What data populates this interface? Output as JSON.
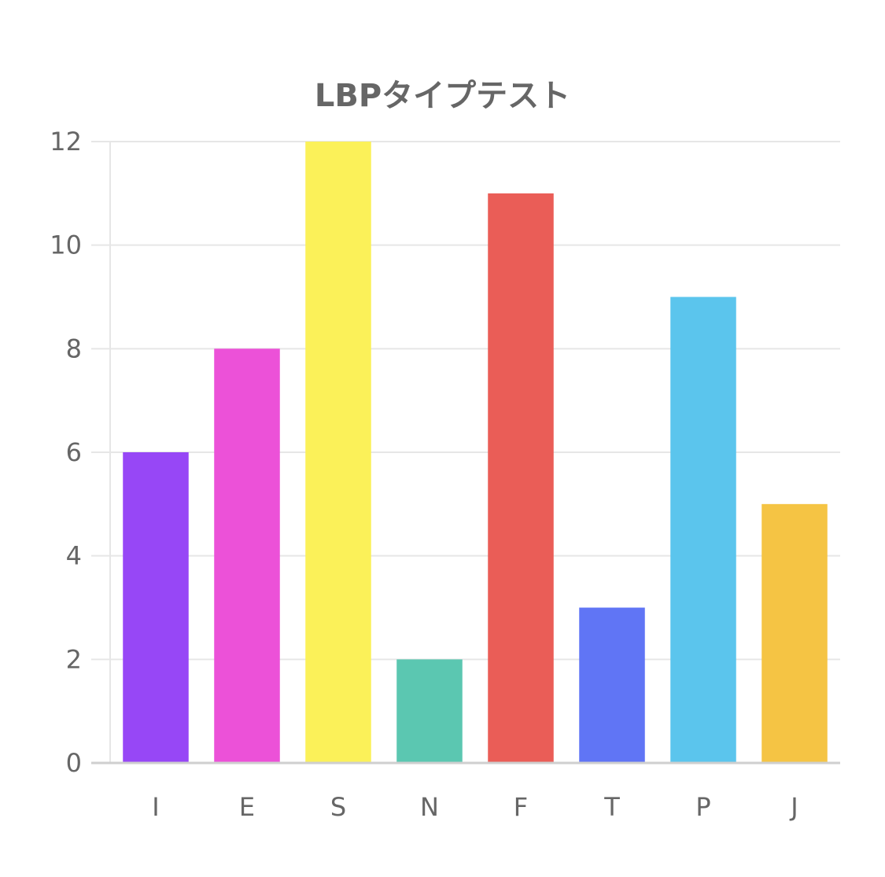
{
  "chart_data": {
    "type": "bar",
    "title": "LBPタイプテスト",
    "xlabel": "",
    "ylabel": "",
    "categories": [
      "I",
      "E",
      "S",
      "N",
      "F",
      "T",
      "P",
      "J"
    ],
    "values": [
      6,
      8,
      12,
      2,
      11,
      3,
      9,
      5
    ],
    "bar_colors": [
      "#9747F6",
      "#EC51D8",
      "#FBF159",
      "#5BC7B1",
      "#EA5D57",
      "#6075F5",
      "#5BC5ED",
      "#F5C444"
    ],
    "ylim": [
      0,
      12
    ],
    "y_ticks": [
      0,
      2,
      4,
      6,
      8,
      10,
      12
    ],
    "grid": true,
    "legend": "none"
  }
}
